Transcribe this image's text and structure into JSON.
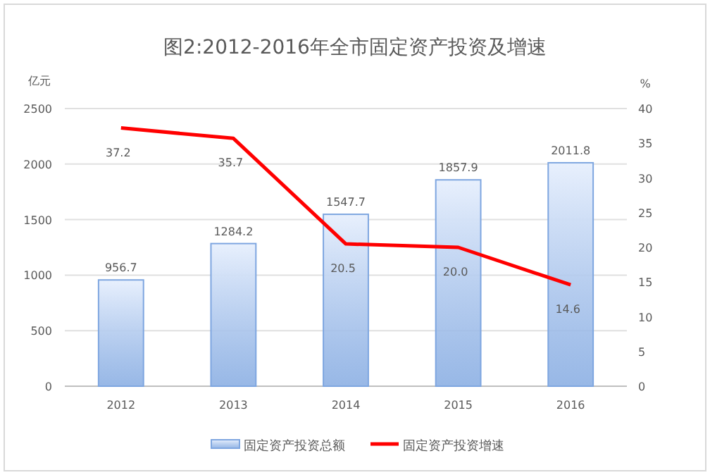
{
  "chart_data": {
    "type": "bar",
    "title": "图2:2012-2016年全市固定资产投资及增速",
    "categories": [
      "2012",
      "2013",
      "2014",
      "2015",
      "2016"
    ],
    "series": [
      {
        "name": "固定资产投资总额",
        "color": "#7ea6e0",
        "values": [
          956.7,
          1284.2,
          1547.7,
          1857.9,
          2011.8
        ],
        "value_labels": [
          "956.7",
          "1284.2",
          "1547.7",
          "1857.9",
          "2011.8"
        ]
      },
      {
        "name": "固定资产投资增速",
        "type": "line",
        "axis": "y2",
        "color": "#ff0000",
        "values": [
          37.2,
          35.7,
          20.5,
          20.0,
          14.6
        ],
        "value_labels": [
          "37.2",
          "35.7",
          "20.5",
          "20.0",
          "14.6"
        ]
      }
    ],
    "ylabel": "亿元",
    "y2label": "%",
    "ylim": [
      0,
      2500
    ],
    "yticks": [
      0,
      500,
      1000,
      1500,
      2000,
      2500
    ],
    "y2lim": [
      0,
      40
    ],
    "y2ticks": [
      0,
      5,
      10,
      15,
      20,
      25,
      30,
      35,
      40
    ],
    "grid": "y",
    "legend": "bottom"
  }
}
